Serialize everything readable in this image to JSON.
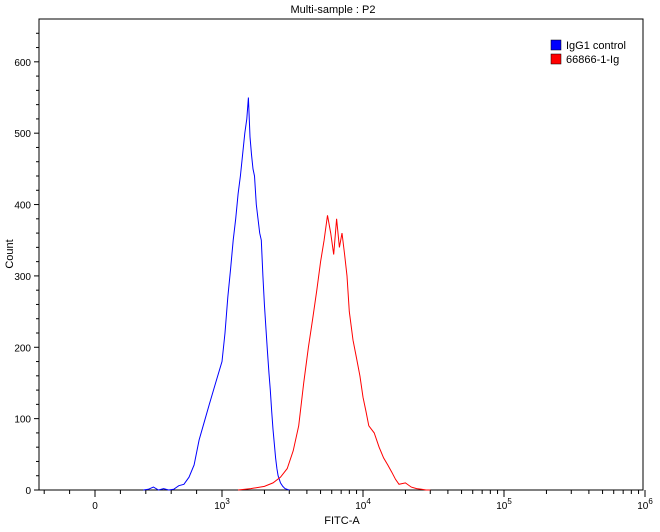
{
  "chart_data": {
    "type": "line",
    "title": "Multi-sample : P2",
    "xlabel": "FITC-A",
    "ylabel": "Count",
    "x_scale": "biexponential",
    "ylim": [
      0,
      660
    ],
    "y_ticks": [
      0,
      100,
      200,
      300,
      400,
      500,
      600
    ],
    "x_ticks": [
      {
        "value": 0,
        "label": "0"
      },
      {
        "value": 1000,
        "label": "10",
        "exp": "3"
      },
      {
        "value": 10000,
        "label": "10",
        "exp": "4"
      },
      {
        "value": 100000,
        "label": "10",
        "exp": "5"
      },
      {
        "value": 1000000,
        "label": "10",
        "exp": "6"
      }
    ],
    "grid": false,
    "legend_position": "top-right",
    "series": [
      {
        "name": "IgG1 control",
        "color": "#0000ff",
        "x": [
          380,
          420,
          460,
          500,
          540,
          580,
          620,
          660,
          700,
          740,
          780,
          820,
          860,
          900,
          950,
          1000,
          1050,
          1100,
          1150,
          1200,
          1250,
          1300,
          1350,
          1400,
          1450,
          1500,
          1540,
          1580,
          1620,
          1660,
          1700,
          1750,
          1800,
          1850,
          1900,
          1950,
          2000,
          2050,
          2100,
          2150,
          2200,
          2250,
          2300,
          2350,
          2400,
          2450,
          2500,
          2600,
          2700,
          2800,
          2900,
          3000
        ],
        "y": [
          0,
          1,
          4,
          0,
          2,
          0,
          1,
          6,
          8,
          18,
          35,
          70,
          95,
          120,
          150,
          180,
          220,
          270,
          310,
          350,
          380,
          415,
          440,
          470,
          500,
          520,
          550,
          495,
          470,
          450,
          440,
          400,
          380,
          360,
          350,
          300,
          260,
          225,
          195,
          165,
          140,
          110,
          85,
          65,
          45,
          30,
          20,
          10,
          5,
          2,
          1,
          0
        ]
      },
      {
        "name": "66866-1-Ig",
        "color": "#ff0000",
        "x": [
          1300,
          1600,
          2000,
          2300,
          2600,
          2900,
          3200,
          3500,
          3800,
          4100,
          4400,
          4700,
          5000,
          5300,
          5600,
          5900,
          6200,
          6500,
          6800,
          7100,
          7400,
          7700,
          8000,
          8500,
          9000,
          9500,
          10000,
          10500,
          11000,
          12000,
          13000,
          14000,
          15000,
          16000,
          17000,
          18000,
          20000,
          22000,
          24000,
          26000,
          28000,
          30000
        ],
        "y": [
          0,
          2,
          5,
          10,
          18,
          30,
          55,
          90,
          150,
          200,
          240,
          280,
          320,
          350,
          385,
          360,
          330,
          380,
          340,
          360,
          330,
          300,
          250,
          210,
          185,
          160,
          130,
          110,
          90,
          80,
          60,
          45,
          35,
          25,
          15,
          8,
          10,
          4,
          2,
          1,
          0,
          0
        ]
      }
    ]
  }
}
